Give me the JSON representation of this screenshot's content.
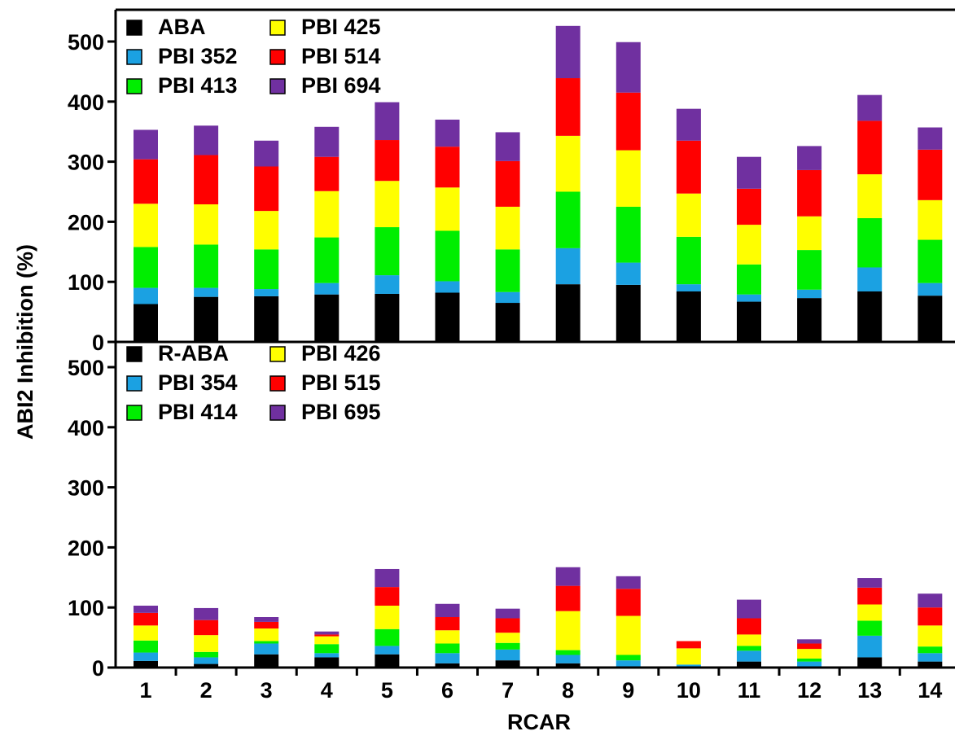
{
  "chart_data": [
    {
      "type": "bar",
      "stacked": true,
      "panel": "top",
      "categories": [
        "1",
        "2",
        "3",
        "4",
        "5",
        "6",
        "7",
        "8",
        "9",
        "10",
        "11",
        "12",
        "13",
        "14"
      ],
      "ylim": [
        0,
        520
      ],
      "yticks": [
        "0",
        "100",
        "200",
        "300",
        "400",
        "500"
      ],
      "legend_placement": "top-left",
      "series": [
        {
          "name": "ABA",
          "color": "#000000",
          "values": [
            63,
            75,
            76,
            79,
            80,
            82,
            65,
            96,
            95,
            84,
            67,
            73,
            84,
            77
          ]
        },
        {
          "name": "PBI 352",
          "color": "#1ba1e2",
          "values": [
            27,
            15,
            12,
            19,
            31,
            19,
            18,
            60,
            37,
            12,
            12,
            14,
            40,
            21
          ]
        },
        {
          "name": "PBI 413",
          "color": "#00ee00",
          "values": [
            68,
            72,
            66,
            76,
            80,
            84,
            71,
            94,
            93,
            79,
            50,
            66,
            82,
            72
          ]
        },
        {
          "name": "PBI 425",
          "color": "#ffff00",
          "values": [
            72,
            67,
            64,
            77,
            77,
            72,
            71,
            93,
            94,
            72,
            66,
            56,
            73,
            66
          ]
        },
        {
          "name": "PBI 514",
          "color": "#ff0000",
          "values": [
            74,
            82,
            74,
            57,
            68,
            68,
            76,
            96,
            96,
            88,
            60,
            77,
            89,
            84
          ]
        },
        {
          "name": "PBI 694",
          "color": "#7030a0",
          "values": [
            49,
            49,
            43,
            50,
            63,
            45,
            48,
            87,
            84,
            53,
            53,
            40,
            43,
            37
          ]
        }
      ]
    },
    {
      "type": "bar",
      "stacked": true,
      "panel": "bottom",
      "categories": [
        "1",
        "2",
        "3",
        "4",
        "5",
        "6",
        "7",
        "8",
        "9",
        "10",
        "11",
        "12",
        "13",
        "14"
      ],
      "ylim": [
        0,
        520
      ],
      "yticks": [
        "0",
        "100",
        "200",
        "300",
        "400",
        "500"
      ],
      "legend_placement": "top-left",
      "series": [
        {
          "name": "R-ABA",
          "color": "#000000",
          "values": [
            11,
            6,
            22,
            17,
            22,
            7,
            12,
            7,
            2,
            0,
            10,
            2,
            17,
            10
          ]
        },
        {
          "name": "PBI 354",
          "color": "#1ba1e2",
          "values": [
            14,
            11,
            18,
            7,
            14,
            17,
            18,
            14,
            10,
            5,
            18,
            8,
            36,
            14
          ]
        },
        {
          "name": "PBI 414",
          "color": "#00ee00",
          "values": [
            20,
            9,
            4,
            15,
            28,
            16,
            11,
            8,
            9,
            0,
            8,
            5,
            25,
            11
          ]
        },
        {
          "name": "PBI 426",
          "color": "#ffff00",
          "values": [
            25,
            28,
            21,
            13,
            39,
            22,
            17,
            65,
            65,
            27,
            19,
            16,
            27,
            35
          ]
        },
        {
          "name": "PBI 515",
          "color": "#ff0000",
          "values": [
            21,
            25,
            11,
            3,
            31,
            22,
            24,
            42,
            45,
            12,
            27,
            9,
            28,
            30
          ]
        },
        {
          "name": "PBI 695",
          "color": "#7030a0",
          "values": [
            12,
            20,
            8,
            5,
            30,
            22,
            16,
            31,
            21,
            0,
            31,
            7,
            16,
            23
          ]
        }
      ]
    }
  ],
  "axes": {
    "ylabel": "ABI2 Inhibition (%)",
    "xlabel": "RCAR"
  }
}
